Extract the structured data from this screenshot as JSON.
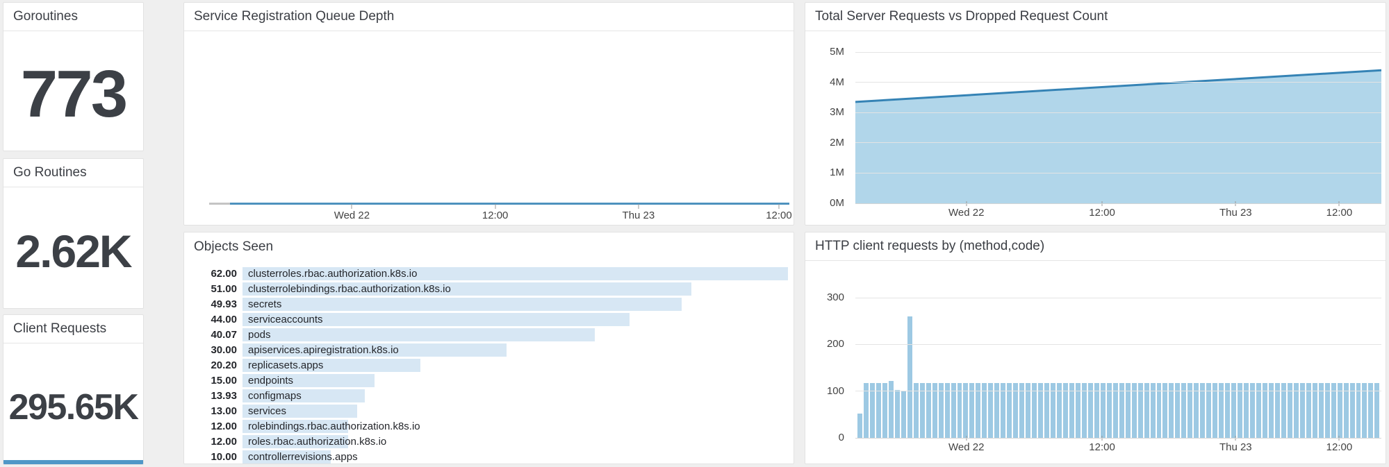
{
  "colors": {
    "page_background": "#efefef",
    "panel_background": "#ffffff",
    "area_fill": "#a9d2e8",
    "area_line": "#3583b5",
    "bar_fill": "#9dc9e3",
    "objects_bar_fill": "#d7e7f4",
    "sparkline_blue": "#4f97c7",
    "flatline_blue": "#4e92be",
    "flatline_gray": "#c4c4c4"
  },
  "chart_data": [
    {
      "type": "stat",
      "title": "Goroutines",
      "value": "773",
      "value_num": 773
    },
    {
      "type": "stat",
      "title": "Go Routines",
      "value": "2.62K",
      "value_num": 2620
    },
    {
      "type": "stat",
      "title": "Client Requests",
      "value": "295.65K",
      "value_num": 295650,
      "has_sparkline": true
    },
    {
      "type": "line",
      "title": "Service Registration Queue Depth",
      "x_tick_labels": [
        "Wed 22",
        "12:00",
        "Thu 23",
        "12:00"
      ],
      "series": [
        {
          "name": "queue depth",
          "values": [
            0,
            0
          ],
          "note": "flat at ~0 across the whole time range"
        }
      ],
      "grid": false,
      "legend": "none"
    },
    {
      "type": "area",
      "title": "Total Server Requests vs Dropped Request Count",
      "x_tick_labels": [
        "Wed 22",
        "12:00",
        "Thu 23",
        "12:00"
      ],
      "y_tick_labels_top_down": [
        "5M",
        "4M",
        "3M",
        "2M",
        "1M",
        "0M"
      ],
      "ylim": [
        0,
        5000000
      ],
      "series": [
        {
          "name": "total server requests",
          "points_pct_valueM": [
            [
              0,
              3.35
            ],
            [
              100,
              4.4
            ]
          ],
          "shape": "linear rise"
        }
      ],
      "grid": true,
      "legend": "none"
    },
    {
      "type": "bar-horizontal",
      "title": "Objects Seen",
      "categories": [
        "clusterroles.rbac.authorization.k8s.io",
        "clusterrolebindings.rbac.authorization.k8s.io",
        "secrets",
        "serviceaccounts",
        "pods",
        "apiservices.apiregistration.k8s.io",
        "replicasets.apps",
        "endpoints",
        "configmaps",
        "services",
        "rolebindings.rbac.authorization.k8s.io",
        "roles.rbac.authorization.k8s.io",
        "controllerrevisions.apps"
      ],
      "values": [
        62,
        51,
        49.93,
        44,
        40.07,
        30,
        20.2,
        15,
        13.93,
        13,
        12,
        12,
        10
      ],
      "value_labels": [
        "62.00",
        "51.00",
        "49.93",
        "44.00",
        "40.07",
        "30.00",
        "20.20",
        "15.00",
        "13.93",
        "13.00",
        "12.00",
        "12.00",
        "10.00"
      ],
      "xlim": [
        0,
        62
      ]
    },
    {
      "type": "bar",
      "title": "HTTP client requests by (method,code)",
      "x_tick_labels": [
        "Wed 22",
        "12:00",
        "Thu 23",
        "12:00"
      ],
      "y_tick_labels_top_down": [
        "300",
        "200",
        "100",
        "0"
      ],
      "ylim": [
        0,
        300
      ],
      "values": [
        52,
        118,
        118,
        118,
        118,
        122,
        103,
        99,
        260,
        118,
        118,
        118,
        118,
        118,
        118,
        118,
        118,
        118,
        118,
        118,
        118,
        118,
        118,
        118,
        118,
        118,
        118,
        118,
        118,
        118,
        118,
        118,
        118,
        118,
        118,
        118,
        118,
        118,
        118,
        118,
        118,
        118,
        118,
        118,
        118,
        118,
        118,
        118,
        118,
        118,
        118,
        118,
        118,
        118,
        118,
        118,
        118,
        118,
        118,
        118,
        118,
        118,
        118,
        118,
        118,
        118,
        118,
        118,
        118,
        118,
        118,
        118,
        118,
        118,
        118,
        118,
        118,
        118,
        118,
        118,
        118,
        118,
        118,
        118
      ],
      "grid": true,
      "legend": "none"
    }
  ]
}
